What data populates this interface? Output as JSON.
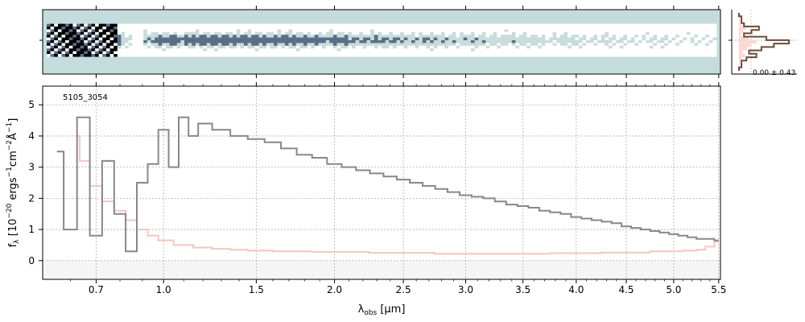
{
  "chart_data": [
    {
      "panel": "2d-spectrum",
      "type": "heatmap",
      "colormap": [
        "#ffffff",
        "#c8dcdc",
        "#5a6e86",
        "#000000"
      ],
      "background_color": "#c5dcdc",
      "description_ticks_shared_with": "1d-spectrum"
    },
    {
      "panel": "profile",
      "type": "line",
      "annotation": "0.00 ± 0.43",
      "profile_values": [
        0.0,
        0.05,
        0.05,
        0.1,
        0.4,
        0.25,
        0.1,
        0.55,
        1.0,
        0.7,
        0.45,
        0.2,
        0.35,
        0.15,
        0.05,
        0.05,
        0.0
      ],
      "line_color": "#6e4a3a",
      "fill_color": "#fcd8d2"
    },
    {
      "panel": "1d-spectrum",
      "type": "line",
      "label": "5105_3054",
      "xlabel_parts": {
        "base": "λ",
        "sub": "obs",
        "tail": " [μm]"
      },
      "ylabel_parts": [
        "f",
        "λ",
        " [10",
        "−20",
        " ergs",
        "−1",
        "cm",
        "−2",
        "Å",
        "−1",
        "]"
      ],
      "xscale": "sqrt",
      "xlim": [
        0.5,
        5.52
      ],
      "ylim": [
        -0.6,
        5.6
      ],
      "xticks": [
        0.7,
        1.0,
        1.5,
        2.0,
        2.5,
        3.0,
        3.5,
        4.0,
        4.5,
        5.0,
        5.5
      ],
      "xtick_labels": [
        "0.7",
        "1.0",
        "1.5",
        "2.0",
        "2.5",
        "3.0",
        "3.5",
        "4.0",
        "4.5",
        "5.0",
        "5.5"
      ],
      "yticks": [
        0,
        1,
        2,
        3,
        4,
        5
      ],
      "ytick_labels": [
        "0",
        "1",
        "2",
        "3",
        "4",
        "5"
      ],
      "grid": true,
      "series": [
        {
          "role": "flux",
          "color": "#888888",
          "x": [
            0.55,
            0.6,
            0.65,
            0.7,
            0.75,
            0.8,
            0.85,
            0.9,
            0.95,
            1.0,
            1.05,
            1.1,
            1.15,
            1.2,
            1.3,
            1.4,
            1.5,
            1.6,
            1.7,
            1.8,
            1.9,
            2.0,
            2.1,
            2.2,
            2.3,
            2.4,
            2.5,
            2.6,
            2.7,
            2.8,
            2.9,
            3.0,
            3.1,
            3.2,
            3.3,
            3.4,
            3.5,
            3.6,
            3.7,
            3.8,
            3.9,
            4.0,
            4.1,
            4.2,
            4.3,
            4.4,
            4.5,
            4.6,
            4.7,
            4.8,
            4.9,
            5.0,
            5.1,
            5.2,
            5.3,
            5.4,
            5.5
          ],
          "y": [
            3.5,
            1.0,
            4.6,
            0.8,
            3.2,
            1.5,
            0.3,
            2.5,
            3.1,
            4.2,
            3.0,
            4.6,
            4.0,
            4.4,
            4.2,
            4.0,
            3.9,
            3.8,
            3.6,
            3.4,
            3.3,
            3.1,
            3.0,
            2.9,
            2.8,
            2.7,
            2.6,
            2.5,
            2.4,
            2.3,
            2.2,
            2.1,
            2.05,
            2.0,
            1.9,
            1.8,
            1.75,
            1.7,
            1.6,
            1.55,
            1.5,
            1.4,
            1.35,
            1.3,
            1.25,
            1.2,
            1.1,
            1.05,
            1.0,
            0.95,
            0.9,
            0.85,
            0.8,
            0.75,
            0.7,
            0.7,
            0.65
          ]
        },
        {
          "role": "model",
          "color": "#f7c4c0",
          "x": [
            0.62,
            0.65,
            0.7,
            0.75,
            0.8,
            0.85,
            0.9,
            0.95,
            1.0,
            1.1,
            1.2,
            1.3,
            1.4,
            1.5,
            1.7,
            2.0,
            2.5,
            3.0,
            3.5,
            4.0,
            4.5,
            5.0,
            5.2,
            5.3,
            5.4,
            5.5
          ],
          "y": [
            4.0,
            3.2,
            2.4,
            1.9,
            1.6,
            1.3,
            1.0,
            0.8,
            0.65,
            0.5,
            0.42,
            0.38,
            0.35,
            0.32,
            0.3,
            0.28,
            0.25,
            0.22,
            0.22,
            0.24,
            0.26,
            0.3,
            0.32,
            0.35,
            0.45,
            0.6
          ]
        }
      ]
    }
  ]
}
